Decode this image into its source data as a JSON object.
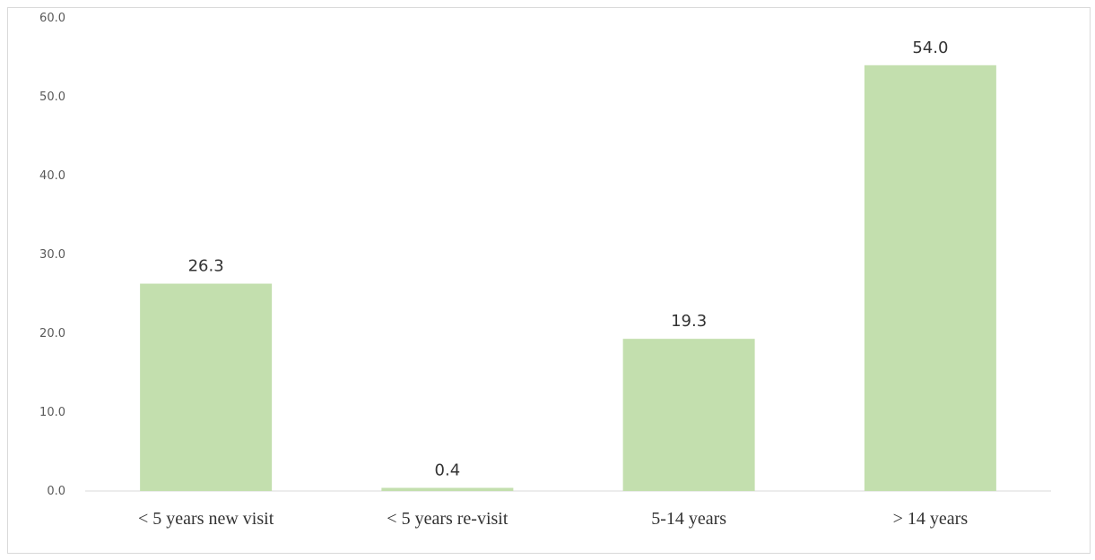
{
  "chart_data": {
    "type": "bar",
    "categories": [
      "< 5 years new visit",
      "< 5 years re-visit",
      "5-14 years",
      "> 14 years"
    ],
    "values": [
      26.3,
      0.4,
      19.3,
      54.0
    ],
    "data_labels": [
      "26.3",
      "0.4",
      "19.3",
      "54.0"
    ],
    "yticks": [
      "0.0",
      "10.0",
      "20.0",
      "30.0",
      "40.0",
      "50.0",
      "60.0"
    ],
    "ylim": [
      0,
      60
    ],
    "grid": false,
    "bar_color": "#c3dfae"
  }
}
